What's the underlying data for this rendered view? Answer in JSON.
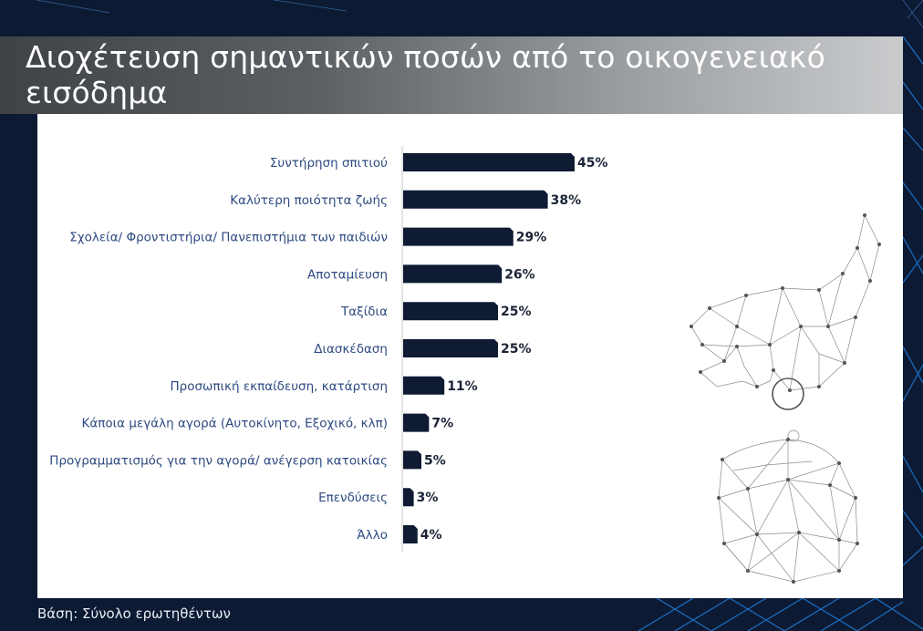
{
  "page": {
    "title": "Διοχέτευση σημαντικών ποσών από το οικογενειακό εισόδημα",
    "footer": "Βάση: Σύνολο ερωτηθέντων"
  },
  "colors": {
    "background": "#0d1a33",
    "bar": "#0e1b33",
    "label": "#2d4a82",
    "value": "#1a2436",
    "accent_lines": "#1e90ff"
  },
  "chart_data": {
    "type": "bar",
    "orientation": "horizontal",
    "categories": [
      "Συντήρηση σπιτιού",
      "Καλύτερη ποιότητα ζωής",
      "Σχολεία/ Φροντιστήρια/ Πανεπιστήμια των παιδιών",
      "Αποταμίευση",
      "Ταξίδια",
      "Διασκέδαση",
      "Προσωπική εκπαίδευση, κατάρτιση",
      "Κάποια μεγάλη αγορά (Αυτοκίνητο, Εξοχικό, κλπ)",
      "Προγραμματισμός για την αγορά/ ανέγερση κατοικίας",
      "Επενδύσεις",
      "Άλλο"
    ],
    "values": [
      45,
      38,
      29,
      26,
      25,
      25,
      11,
      7,
      5,
      3,
      4
    ],
    "value_labels": [
      "45%",
      "38%",
      "29%",
      "26%",
      "25%",
      "25%",
      "11%",
      "7%",
      "5%",
      "3%",
      "4%"
    ],
    "unit": "%",
    "grid": false,
    "legend": "none"
  },
  "illustrations": {
    "hand": "polygon-wireframe-hand-icon",
    "coin": "coin-icon",
    "purse": "polygon-wireframe-purse-icon"
  }
}
